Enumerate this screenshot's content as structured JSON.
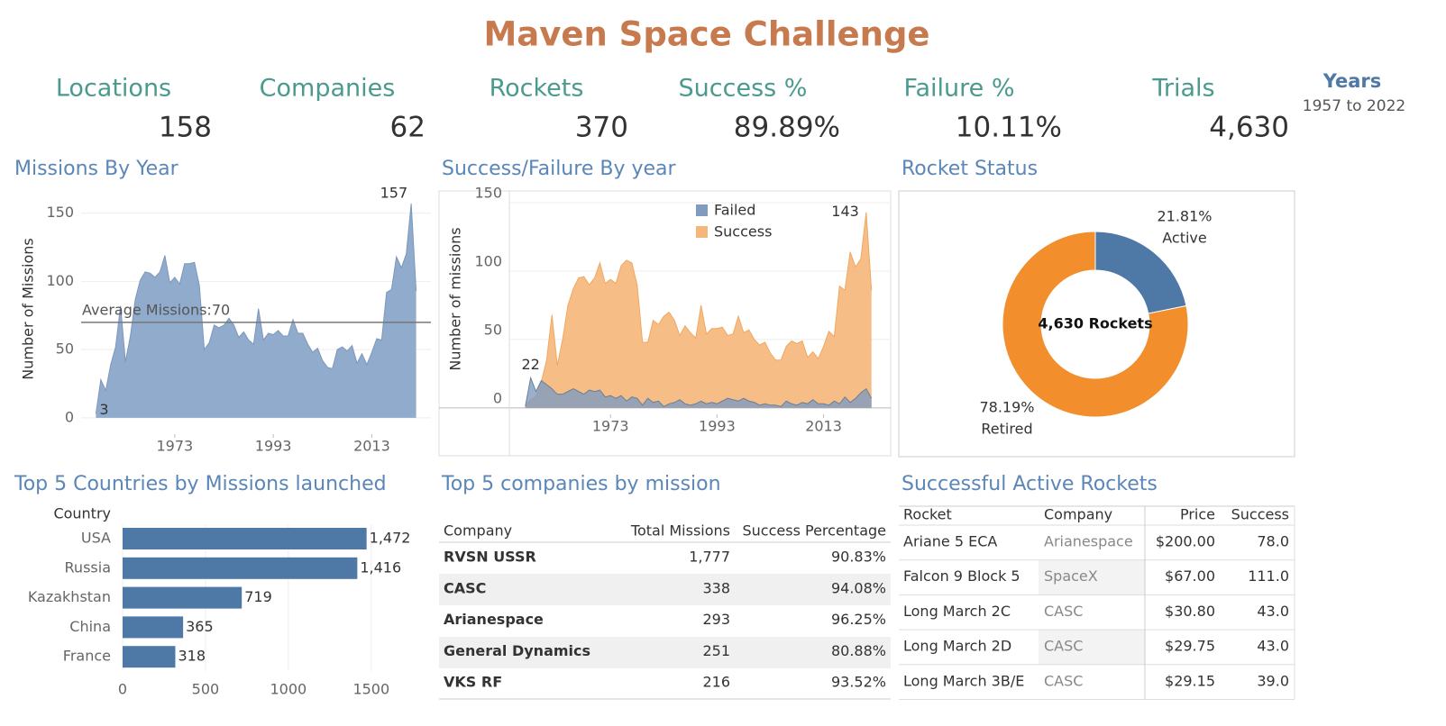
{
  "title": "Maven Space Challenge",
  "kpis": [
    {
      "label": "Locations",
      "value": "158"
    },
    {
      "label": "Companies",
      "value": "62"
    },
    {
      "label": "Rockets",
      "value": "370"
    },
    {
      "label": "Success %",
      "value": "89.89%"
    },
    {
      "label": "Failure %",
      "value": "10.11%"
    },
    {
      "label": "Trials",
      "value": "4,630"
    }
  ],
  "years": {
    "label": "Years",
    "value": "1957 to 2022"
  },
  "chart_data": [
    {
      "type": "area",
      "title": "Missions By Year",
      "y_label": "Number of Missions",
      "color": "#8ba6c9",
      "x": [
        1957,
        1958,
        1959,
        1960,
        1961,
        1962,
        1963,
        1964,
        1965,
        1966,
        1967,
        1968,
        1969,
        1970,
        1971,
        1972,
        1973,
        1974,
        1975,
        1976,
        1977,
        1978,
        1979,
        1980,
        1981,
        1982,
        1983,
        1984,
        1985,
        1986,
        1987,
        1988,
        1989,
        1990,
        1991,
        1992,
        1993,
        1994,
        1995,
        1996,
        1997,
        1998,
        1999,
        2000,
        2001,
        2002,
        2003,
        2004,
        2005,
        2006,
        2007,
        2008,
        2009,
        2010,
        2011,
        2012,
        2013,
        2014,
        2015,
        2016,
        2017,
        2018,
        2019,
        2020,
        2021,
        2022
      ],
      "values": [
        3,
        28,
        20,
        39,
        52,
        82,
        41,
        60,
        87,
        101,
        107,
        106,
        103,
        107,
        119,
        99,
        103,
        98,
        113,
        113,
        114,
        97,
        50,
        55,
        68,
        66,
        68,
        73,
        68,
        59,
        63,
        57,
        54,
        80,
        57,
        62,
        61,
        64,
        60,
        60,
        72,
        62,
        62,
        54,
        48,
        51,
        42,
        37,
        36,
        50,
        52,
        49,
        53,
        40,
        47,
        39,
        48,
        58,
        57,
        92,
        94,
        118,
        110,
        120,
        157,
        93
      ],
      "xlim": [
        1954,
        2025
      ],
      "xticks": [
        1973,
        1993,
        2013
      ],
      "ylim": [
        -8,
        161
      ],
      "yticks": [
        0,
        50,
        100,
        150
      ],
      "grid": true,
      "reference_line": {
        "label": "Average Missions:70",
        "value": 70
      }
    },
    {
      "type": "overlap_area",
      "title": "Success/Failure By year",
      "y_label": "Number of missions",
      "legend": "top",
      "x": [
        1957,
        1958,
        1959,
        1960,
        1961,
        1962,
        1963,
        1964,
        1965,
        1966,
        1967,
        1968,
        1969,
        1970,
        1971,
        1972,
        1973,
        1974,
        1975,
        1976,
        1977,
        1978,
        1979,
        1980,
        1981,
        1982,
        1983,
        1984,
        1985,
        1986,
        1987,
        1988,
        1989,
        1990,
        1991,
        1992,
        1993,
        1994,
        1995,
        1996,
        1997,
        1998,
        1999,
        2000,
        2001,
        2002,
        2003,
        2004,
        2005,
        2006,
        2007,
        2008,
        2009,
        2010,
        2011,
        2012,
        2013,
        2014,
        2015,
        2016,
        2017,
        2018,
        2019,
        2020,
        2021,
        2022
      ],
      "series": [
        {
          "name": "Failed",
          "color": "#7f9bbf",
          "values": [
            1,
            22,
            12,
            20,
            17,
            14,
            10,
            10,
            12,
            14,
            12,
            10,
            13,
            12,
            13,
            8,
            9,
            7,
            9,
            5,
            8,
            7,
            2,
            7,
            4,
            5,
            1,
            3,
            4,
            6,
            3,
            2,
            3,
            5,
            3,
            4,
            3,
            5,
            7,
            6,
            5,
            7,
            5,
            4,
            2,
            3,
            2,
            2,
            1,
            5,
            3,
            2,
            4,
            3,
            6,
            3,
            3,
            2,
            5,
            3,
            8,
            4,
            7,
            11,
            14,
            7
          ]
        },
        {
          "name": "Success",
          "color": "#f5b67a",
          "values": [
            2,
            6,
            8,
            19,
            35,
            68,
            31,
            50,
            75,
            87,
            95,
            96,
            90,
            95,
            106,
            91,
            94,
            91,
            104,
            108,
            106,
            90,
            48,
            48,
            64,
            61,
            67,
            70,
            64,
            53,
            60,
            55,
            51,
            75,
            54,
            58,
            58,
            59,
            53,
            54,
            67,
            55,
            57,
            50,
            46,
            48,
            40,
            35,
            35,
            45,
            49,
            47,
            49,
            37,
            41,
            36,
            45,
            56,
            52,
            89,
            86,
            114,
            103,
            109,
            143,
            86
          ]
        }
      ],
      "xlim": [
        1954,
        2025.6
      ],
      "xticks": [
        1973,
        1993,
        2013
      ],
      "ylim": [
        -35,
        158.6
      ],
      "yticks": [
        0,
        50,
        100,
        150
      ],
      "grid": true
    },
    {
      "type": "donut",
      "title": "Rocket Status",
      "categories": [
        "Active",
        "Retired"
      ],
      "values": [
        21.81,
        78.19
      ],
      "value_labels": [
        "21.81%",
        "78.19%"
      ],
      "colors": [
        "#4e79a7",
        "#f28e2b"
      ],
      "center_label": "4,630 Rockets"
    },
    {
      "type": "hbar",
      "title": "Top 5 Countries by Missions launched",
      "y_label": "Country",
      "color": "#4e79a7",
      "categories": [
        "USA",
        "Russia",
        "Kazakhstan",
        "China",
        "France"
      ],
      "values": [
        1472,
        1416,
        719,
        365,
        318
      ],
      "value_labels": [
        "1,472",
        "1,416",
        "719",
        "365",
        "318"
      ],
      "xlim": [
        0,
        1860
      ],
      "xticks": [
        0,
        500,
        1000,
        1500
      ],
      "grid": true
    }
  ],
  "tables": [
    {
      "title": "Top 5 companies by mission",
      "columns": [
        "Company",
        "Total Missions",
        "Success Percentage"
      ],
      "rows": [
        [
          "RVSN USSR",
          "1,777",
          "90.83%"
        ],
        [
          "CASC",
          "338",
          "94.08%"
        ],
        [
          "Arianespace",
          "293",
          "96.25%"
        ],
        [
          "General Dynamics",
          "251",
          "80.88%"
        ],
        [
          "VKS RF",
          "216",
          "93.52%"
        ]
      ]
    },
    {
      "title": "Successful Active Rockets",
      "columns": [
        "Rocket",
        "Company",
        "Price",
        "Success"
      ],
      "rows": [
        [
          "Ariane 5 ECA",
          "Arianespace",
          "$200.00",
          "78.0"
        ],
        [
          "Falcon 9 Block 5",
          "SpaceX",
          "$67.00",
          "111.0"
        ],
        [
          "Long March 2C",
          "CASC",
          "$30.80",
          "43.0"
        ],
        [
          "Long March 2D",
          "CASC",
          "$29.75",
          "43.0"
        ],
        [
          "Long March 3B/E",
          "CASC",
          "$29.15",
          "39.0"
        ]
      ]
    }
  ]
}
